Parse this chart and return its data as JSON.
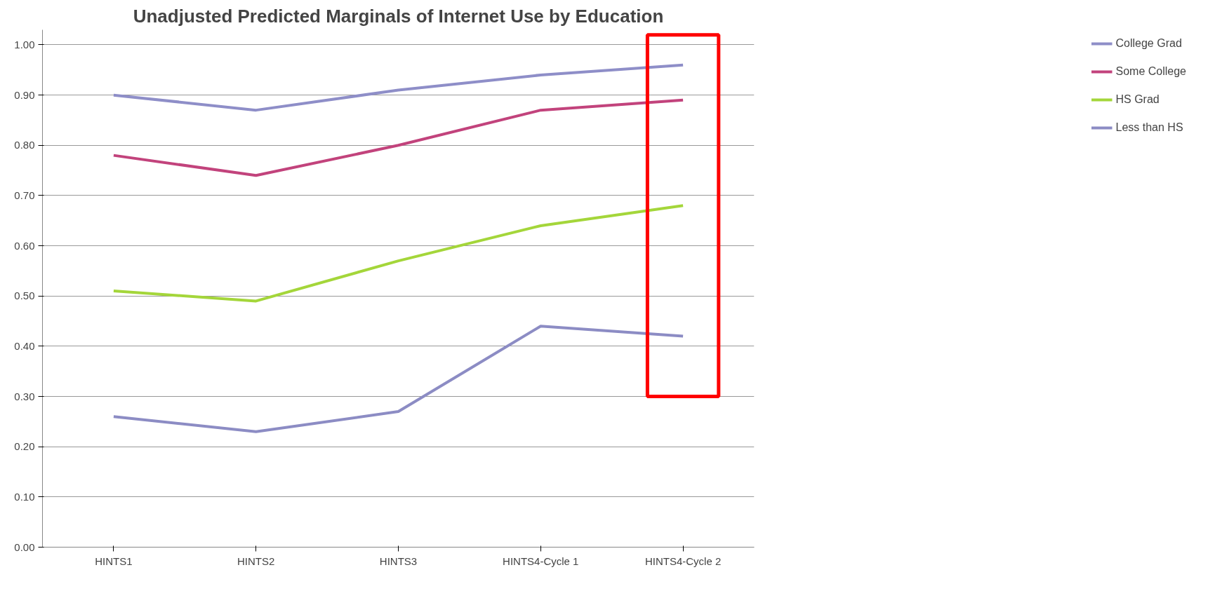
{
  "chart_data": {
    "type": "line",
    "title": "Unadjusted Predicted Marginals of Internet Use by Education",
    "categories": [
      "HINTS1",
      "HINTS2",
      "HINTS3",
      "HINTS4-Cycle 1",
      "HINTS4-Cycle 2"
    ],
    "series": [
      {
        "name": "College Grad",
        "color": "#8e8ec8",
        "values": [
          0.9,
          0.87,
          0.91,
          0.94,
          0.96
        ]
      },
      {
        "name": "Some College",
        "color": "#c2437c",
        "values": [
          0.78,
          0.74,
          0.8,
          0.87,
          0.89
        ]
      },
      {
        "name": "HS Grad",
        "color": "#a4d63a",
        "values": [
          0.51,
          0.49,
          0.57,
          0.64,
          0.68
        ]
      },
      {
        "name": "Less than HS",
        "color": "#8c8cc4",
        "values": [
          0.26,
          0.23,
          0.27,
          0.44,
          0.42
        ]
      }
    ],
    "ylim": [
      0,
      1.0
    ],
    "yticks": [
      {
        "value": 0,
        "label": "0.00"
      },
      {
        "value": 0.1,
        "label": "0.10"
      },
      {
        "value": 0.2,
        "label": "0.20"
      },
      {
        "value": 0.3,
        "label": "0.30"
      },
      {
        "value": 0.4,
        "label": "0.40"
      },
      {
        "value": 0.5,
        "label": "0.50"
      },
      {
        "value": 0.6,
        "label": "0.60"
      },
      {
        "value": 0.7,
        "label": "0.70"
      },
      {
        "value": 0.8,
        "label": "0.80"
      },
      {
        "value": 0.9,
        "label": "0.90"
      },
      {
        "value": 1.0,
        "label": "1.00"
      }
    ],
    "grid": "y",
    "legend": "right",
    "marker": "none",
    "line_style": "solid"
  }
}
